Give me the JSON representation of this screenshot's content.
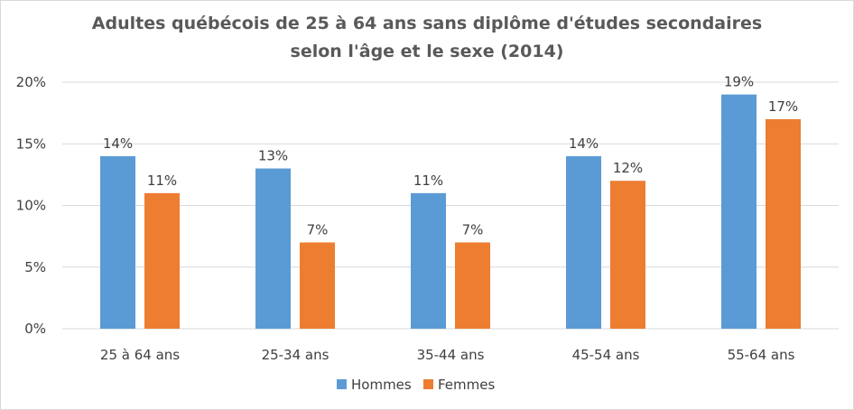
{
  "chart_data": {
    "type": "bar",
    "title_lines": [
      "Adultes québécois de 25 à 64 ans sans diplôme d'études secondaires",
      "selon l'âge et le sexe (2014)"
    ],
    "categories": [
      "25 à 64 ans",
      "25-34 ans",
      "35-44 ans",
      "45-54 ans",
      "55-64 ans"
    ],
    "series": [
      {
        "name": "Hommes",
        "values": [
          14,
          13,
          11,
          14,
          19
        ],
        "color": "#5b9bd5"
      },
      {
        "name": "Femmes",
        "values": [
          11,
          7,
          7,
          12,
          17
        ],
        "color": "#ed7d31"
      }
    ],
    "value_suffix": "%",
    "ylim": [
      0,
      20
    ],
    "yticks": [
      0,
      5,
      10,
      15,
      20
    ],
    "grid": true,
    "gridline_color": "#d9d9d9",
    "legend_position": "bottom"
  }
}
